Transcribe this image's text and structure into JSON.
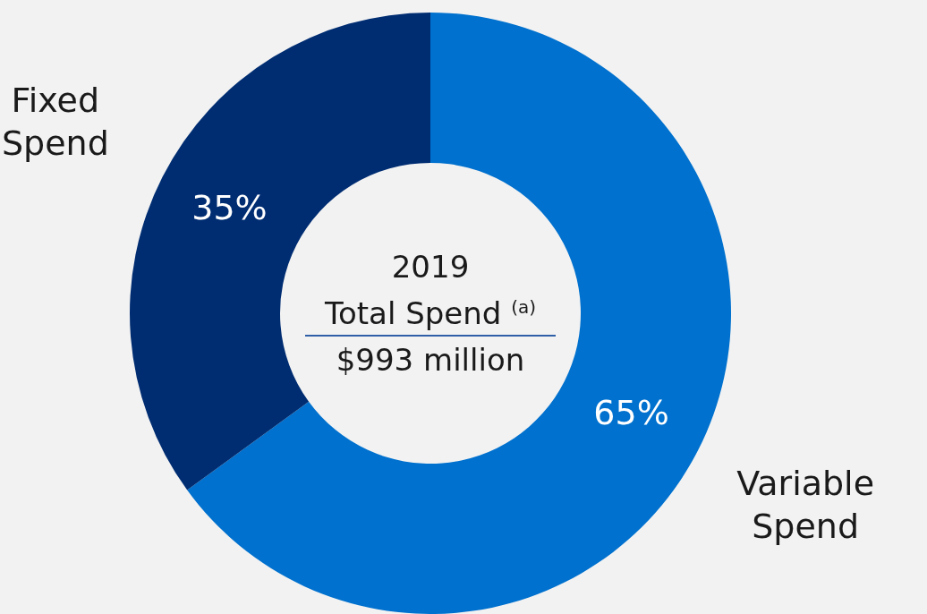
{
  "chart_data": {
    "type": "donut",
    "categories": [
      "Variable Spend",
      "Fixed Spend"
    ],
    "values": [
      65,
      35
    ],
    "colors": [
      "#0071ce",
      "#002d72"
    ],
    "value_labels": [
      "65%",
      "35%"
    ],
    "annotations": [
      "2019",
      "Total Spend $^{(a)}$",
      "$993 million"
    ],
    "legend": false
  }
}
